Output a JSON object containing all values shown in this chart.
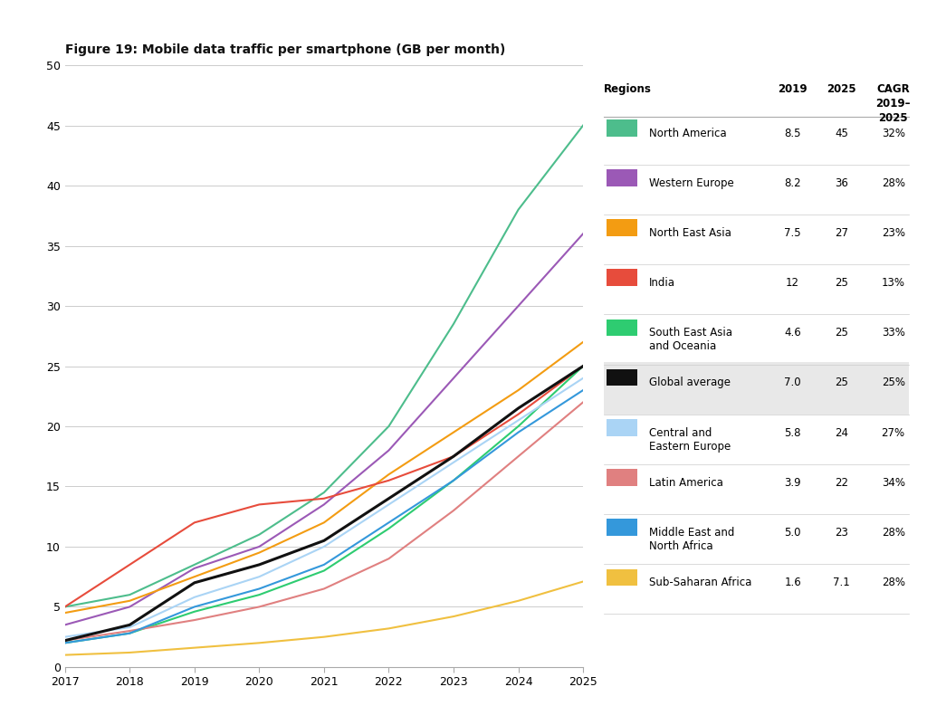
{
  "title": "Figure 19: Mobile data traffic per smartphone (GB per month)",
  "years": [
    2017,
    2018,
    2019,
    2020,
    2021,
    2022,
    2023,
    2024,
    2025
  ],
  "series": [
    {
      "name": "North America",
      "color": "#4dbd8c",
      "values": [
        5.0,
        6.0,
        8.5,
        11.0,
        14.5,
        20.0,
        28.5,
        38.0,
        45.0
      ],
      "val_2019": "8.5",
      "val_2025": "45",
      "cagr": "32%"
    },
    {
      "name": "Western Europe",
      "color": "#9b59b6",
      "values": [
        3.5,
        5.0,
        8.2,
        10.0,
        13.5,
        18.0,
        24.0,
        30.0,
        36.0
      ],
      "val_2019": "8.2",
      "val_2025": "36",
      "cagr": "28%"
    },
    {
      "name": "North East Asia",
      "color": "#f39c12",
      "values": [
        4.5,
        5.5,
        7.5,
        9.5,
        12.0,
        16.0,
        19.5,
        23.0,
        27.0
      ],
      "val_2019": "7.5",
      "val_2025": "27",
      "cagr": "23%"
    },
    {
      "name": "India",
      "color": "#e74c3c",
      "values": [
        5.0,
        8.5,
        12.0,
        13.5,
        14.0,
        15.5,
        17.5,
        21.0,
        25.0
      ],
      "val_2019": "12",
      "val_2025": "25",
      "cagr": "13%"
    },
    {
      "name": "South East Asia\nand Oceania",
      "color": "#2ecc71",
      "values": [
        2.0,
        2.8,
        4.6,
        6.0,
        8.0,
        11.5,
        15.5,
        20.0,
        25.0
      ],
      "val_2019": "4.6",
      "val_2025": "25",
      "cagr": "33%"
    },
    {
      "name": "Global average",
      "color": "#111111",
      "values": [
        2.2,
        3.5,
        7.0,
        8.5,
        10.5,
        14.0,
        17.5,
        21.5,
        25.0
      ],
      "val_2019": "7.0",
      "val_2025": "25",
      "cagr": "25%",
      "highlight": true
    },
    {
      "name": "Central and\nEastern Europe",
      "color": "#aad4f5",
      "values": [
        2.5,
        3.3,
        5.8,
        7.5,
        10.0,
        13.5,
        17.0,
        20.5,
        24.0
      ],
      "val_2019": "5.8",
      "val_2025": "24",
      "cagr": "27%"
    },
    {
      "name": "Latin America",
      "color": "#e08080",
      "values": [
        2.2,
        3.0,
        3.9,
        5.0,
        6.5,
        9.0,
        13.0,
        17.5,
        22.0
      ],
      "val_2019": "3.9",
      "val_2025": "22",
      "cagr": "34%"
    },
    {
      "name": "Middle East and\nNorth Africa",
      "color": "#3498db",
      "values": [
        2.0,
        2.8,
        5.0,
        6.5,
        8.5,
        12.0,
        15.5,
        19.5,
        23.0
      ],
      "val_2019": "5.0",
      "val_2025": "23",
      "cagr": "28%"
    },
    {
      "name": "Sub-Saharan Africa",
      "color": "#f0c040",
      "values": [
        1.0,
        1.2,
        1.6,
        2.0,
        2.5,
        3.2,
        4.2,
        5.5,
        7.1
      ],
      "val_2019": "1.6",
      "val_2025": "7.1",
      "cagr": "28%"
    }
  ],
  "ylim": [
    0,
    50
  ],
  "yticks": [
    0,
    5,
    10,
    15,
    20,
    25,
    30,
    35,
    40,
    45,
    50
  ],
  "background_color": "#ffffff"
}
